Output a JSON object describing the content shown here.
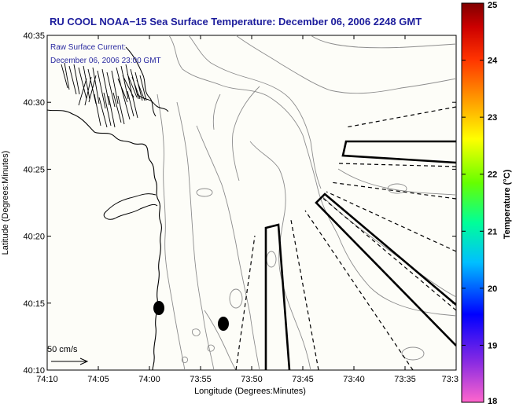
{
  "chart_data": {
    "type": "contour_map",
    "title": "RU COOL  NOAA−15  Sea Surface Temperature:  December 06, 2006 2248 GMT",
    "xlabel": "Longitude (Degrees:Minutes)",
    "ylabel": "Latitude (Degrees:Minutes)",
    "x_ticks": [
      "74:10",
      "74:05",
      "74:00",
      "73:55",
      "73:50",
      "73:45",
      "73:40",
      "73:35",
      "73:3"
    ],
    "y_ticks": [
      "40:35",
      "40:30",
      "40:25",
      "40:20",
      "40:15",
      "40:10"
    ],
    "xlim_minutes_west": [
      10,
      -30
    ],
    "ylim_minutes_north": [
      10,
      35
    ],
    "overlay_text": [
      "Raw Surface Current:",
      "December 06, 2006 23:00 GMT"
    ],
    "scale_label": "50 cm/s",
    "colorbar": {
      "label": "Temperature (°C)",
      "min": 18,
      "max": 25,
      "ticks": [
        "25",
        "24",
        "23",
        "22",
        "21",
        "20",
        "19",
        "18"
      ],
      "colors": [
        "#ff66cc",
        "#8a2be2",
        "#0000ff",
        "#00bfff",
        "#00ff99",
        "#66ff00",
        "#ffff00",
        "#ff9900",
        "#ff3300",
        "#cc0000",
        "#800000"
      ]
    },
    "background_color": "#fdfdf8"
  }
}
